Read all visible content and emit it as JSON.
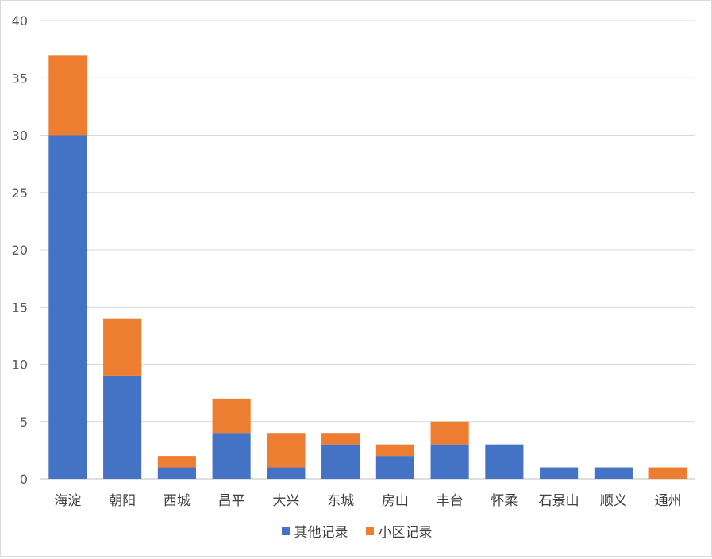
{
  "chart_data": {
    "type": "bar",
    "stacked": true,
    "title": "",
    "xlabel": "",
    "ylabel": "",
    "ylim": [
      0,
      40
    ],
    "yticks": [
      0,
      5,
      10,
      15,
      20,
      25,
      30,
      35,
      40
    ],
    "grid": true,
    "legend_position": "bottom",
    "categories": [
      "海淀",
      "朝阳",
      "西城",
      "昌平",
      "大兴",
      "东城",
      "房山",
      "丰台",
      "怀柔",
      "石景山",
      "顺义",
      "通州"
    ],
    "series": [
      {
        "name": "其他记录",
        "color": "#4472C4",
        "values": [
          30,
          9,
          1,
          4,
          1,
          3,
          2,
          3,
          3,
          1,
          1,
          0
        ]
      },
      {
        "name": "小区记录",
        "color": "#ED7D31",
        "values": [
          7,
          5,
          1,
          3,
          3,
          1,
          1,
          2,
          0,
          0,
          0,
          1
        ]
      }
    ]
  }
}
